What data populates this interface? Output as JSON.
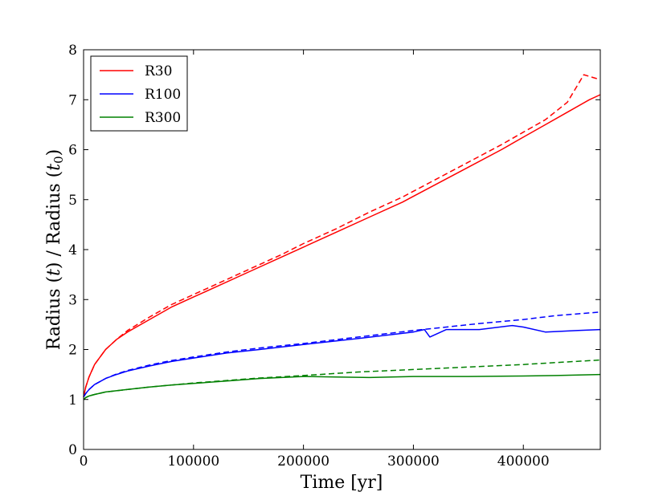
{
  "chart_data": {
    "type": "line",
    "title": "",
    "xlabel": "Time [yr]",
    "ylabel_parts": [
      "Radius (",
      "t",
      ") / Radius (",
      "t",
      "0",
      ")"
    ],
    "xlim": [
      0,
      470000
    ],
    "ylim": [
      0,
      8
    ],
    "x_ticks": [
      0,
      100000,
      200000,
      300000,
      400000
    ],
    "y_ticks": [
      0,
      1,
      2,
      3,
      4,
      5,
      6,
      7,
      8
    ],
    "grid": false,
    "legend_position": "top-left",
    "series": [
      {
        "name": "R30",
        "color": "#ff0000",
        "solid": {
          "x": [
            0,
            2000,
            5000,
            10000,
            20000,
            30000,
            40000,
            60000,
            80000,
            100000,
            120000,
            150000,
            180000,
            200000,
            230000,
            260000,
            290000,
            320000,
            350000,
            380000,
            400000,
            420000,
            440000,
            460000,
            470000
          ],
          "y": [
            1.05,
            1.25,
            1.45,
            1.7,
            2.0,
            2.2,
            2.35,
            2.6,
            2.85,
            3.05,
            3.25,
            3.55,
            3.85,
            4.05,
            4.35,
            4.65,
            4.95,
            5.3,
            5.65,
            6.0,
            6.25,
            6.5,
            6.75,
            7.0,
            7.1
          ]
        },
        "dashed": {
          "x": [
            0,
            2000,
            5000,
            10000,
            20000,
            30000,
            40000,
            60000,
            80000,
            100000,
            120000,
            150000,
            180000,
            200000,
            230000,
            260000,
            290000,
            320000,
            350000,
            380000,
            400000,
            420000,
            440000,
            455000,
            470000
          ],
          "y": [
            1.05,
            1.25,
            1.45,
            1.7,
            2.0,
            2.2,
            2.38,
            2.65,
            2.9,
            3.1,
            3.3,
            3.6,
            3.9,
            4.12,
            4.42,
            4.75,
            5.05,
            5.4,
            5.75,
            6.1,
            6.35,
            6.6,
            6.95,
            7.5,
            7.4
          ]
        }
      },
      {
        "name": "R100",
        "color": "#0000ff",
        "solid": {
          "x": [
            0,
            2000,
            5000,
            10000,
            20000,
            30000,
            40000,
            60000,
            80000,
            100000,
            130000,
            160000,
            200000,
            250000,
            300000,
            310000,
            315000,
            330000,
            360000,
            390000,
            400000,
            420000,
            450000,
            470000
          ],
          "y": [
            1.05,
            1.12,
            1.2,
            1.3,
            1.42,
            1.5,
            1.57,
            1.67,
            1.76,
            1.83,
            1.93,
            2.0,
            2.1,
            2.22,
            2.35,
            2.4,
            2.25,
            2.4,
            2.4,
            2.48,
            2.45,
            2.35,
            2.38,
            2.4
          ]
        },
        "dashed": {
          "x": [
            0,
            2000,
            5000,
            10000,
            20000,
            30000,
            40000,
            60000,
            80000,
            100000,
            130000,
            160000,
            200000,
            250000,
            300000,
            330000,
            360000,
            400000,
            430000,
            470000
          ],
          "y": [
            1.05,
            1.12,
            1.2,
            1.3,
            1.42,
            1.51,
            1.58,
            1.69,
            1.78,
            1.85,
            1.95,
            2.03,
            2.12,
            2.25,
            2.38,
            2.45,
            2.52,
            2.6,
            2.68,
            2.75
          ]
        }
      },
      {
        "name": "R300",
        "color": "#008000",
        "solid": {
          "x": [
            0,
            2000,
            5000,
            10000,
            20000,
            40000,
            60000,
            80000,
            100000,
            130000,
            160000,
            200000,
            230000,
            260000,
            300000,
            350000,
            400000,
            430000,
            470000
          ],
          "y": [
            1.0,
            1.04,
            1.07,
            1.1,
            1.15,
            1.2,
            1.25,
            1.29,
            1.32,
            1.37,
            1.42,
            1.46,
            1.45,
            1.44,
            1.46,
            1.46,
            1.47,
            1.48,
            1.5
          ]
        },
        "dashed": {
          "x": [
            0,
            2000,
            5000,
            10000,
            20000,
            40000,
            60000,
            80000,
            100000,
            130000,
            160000,
            200000,
            250000,
            300000,
            350000,
            400000,
            430000,
            470000
          ],
          "y": [
            1.0,
            1.04,
            1.07,
            1.1,
            1.15,
            1.2,
            1.25,
            1.29,
            1.33,
            1.38,
            1.43,
            1.48,
            1.55,
            1.6,
            1.65,
            1.7,
            1.74,
            1.79
          ]
        }
      }
    ]
  }
}
